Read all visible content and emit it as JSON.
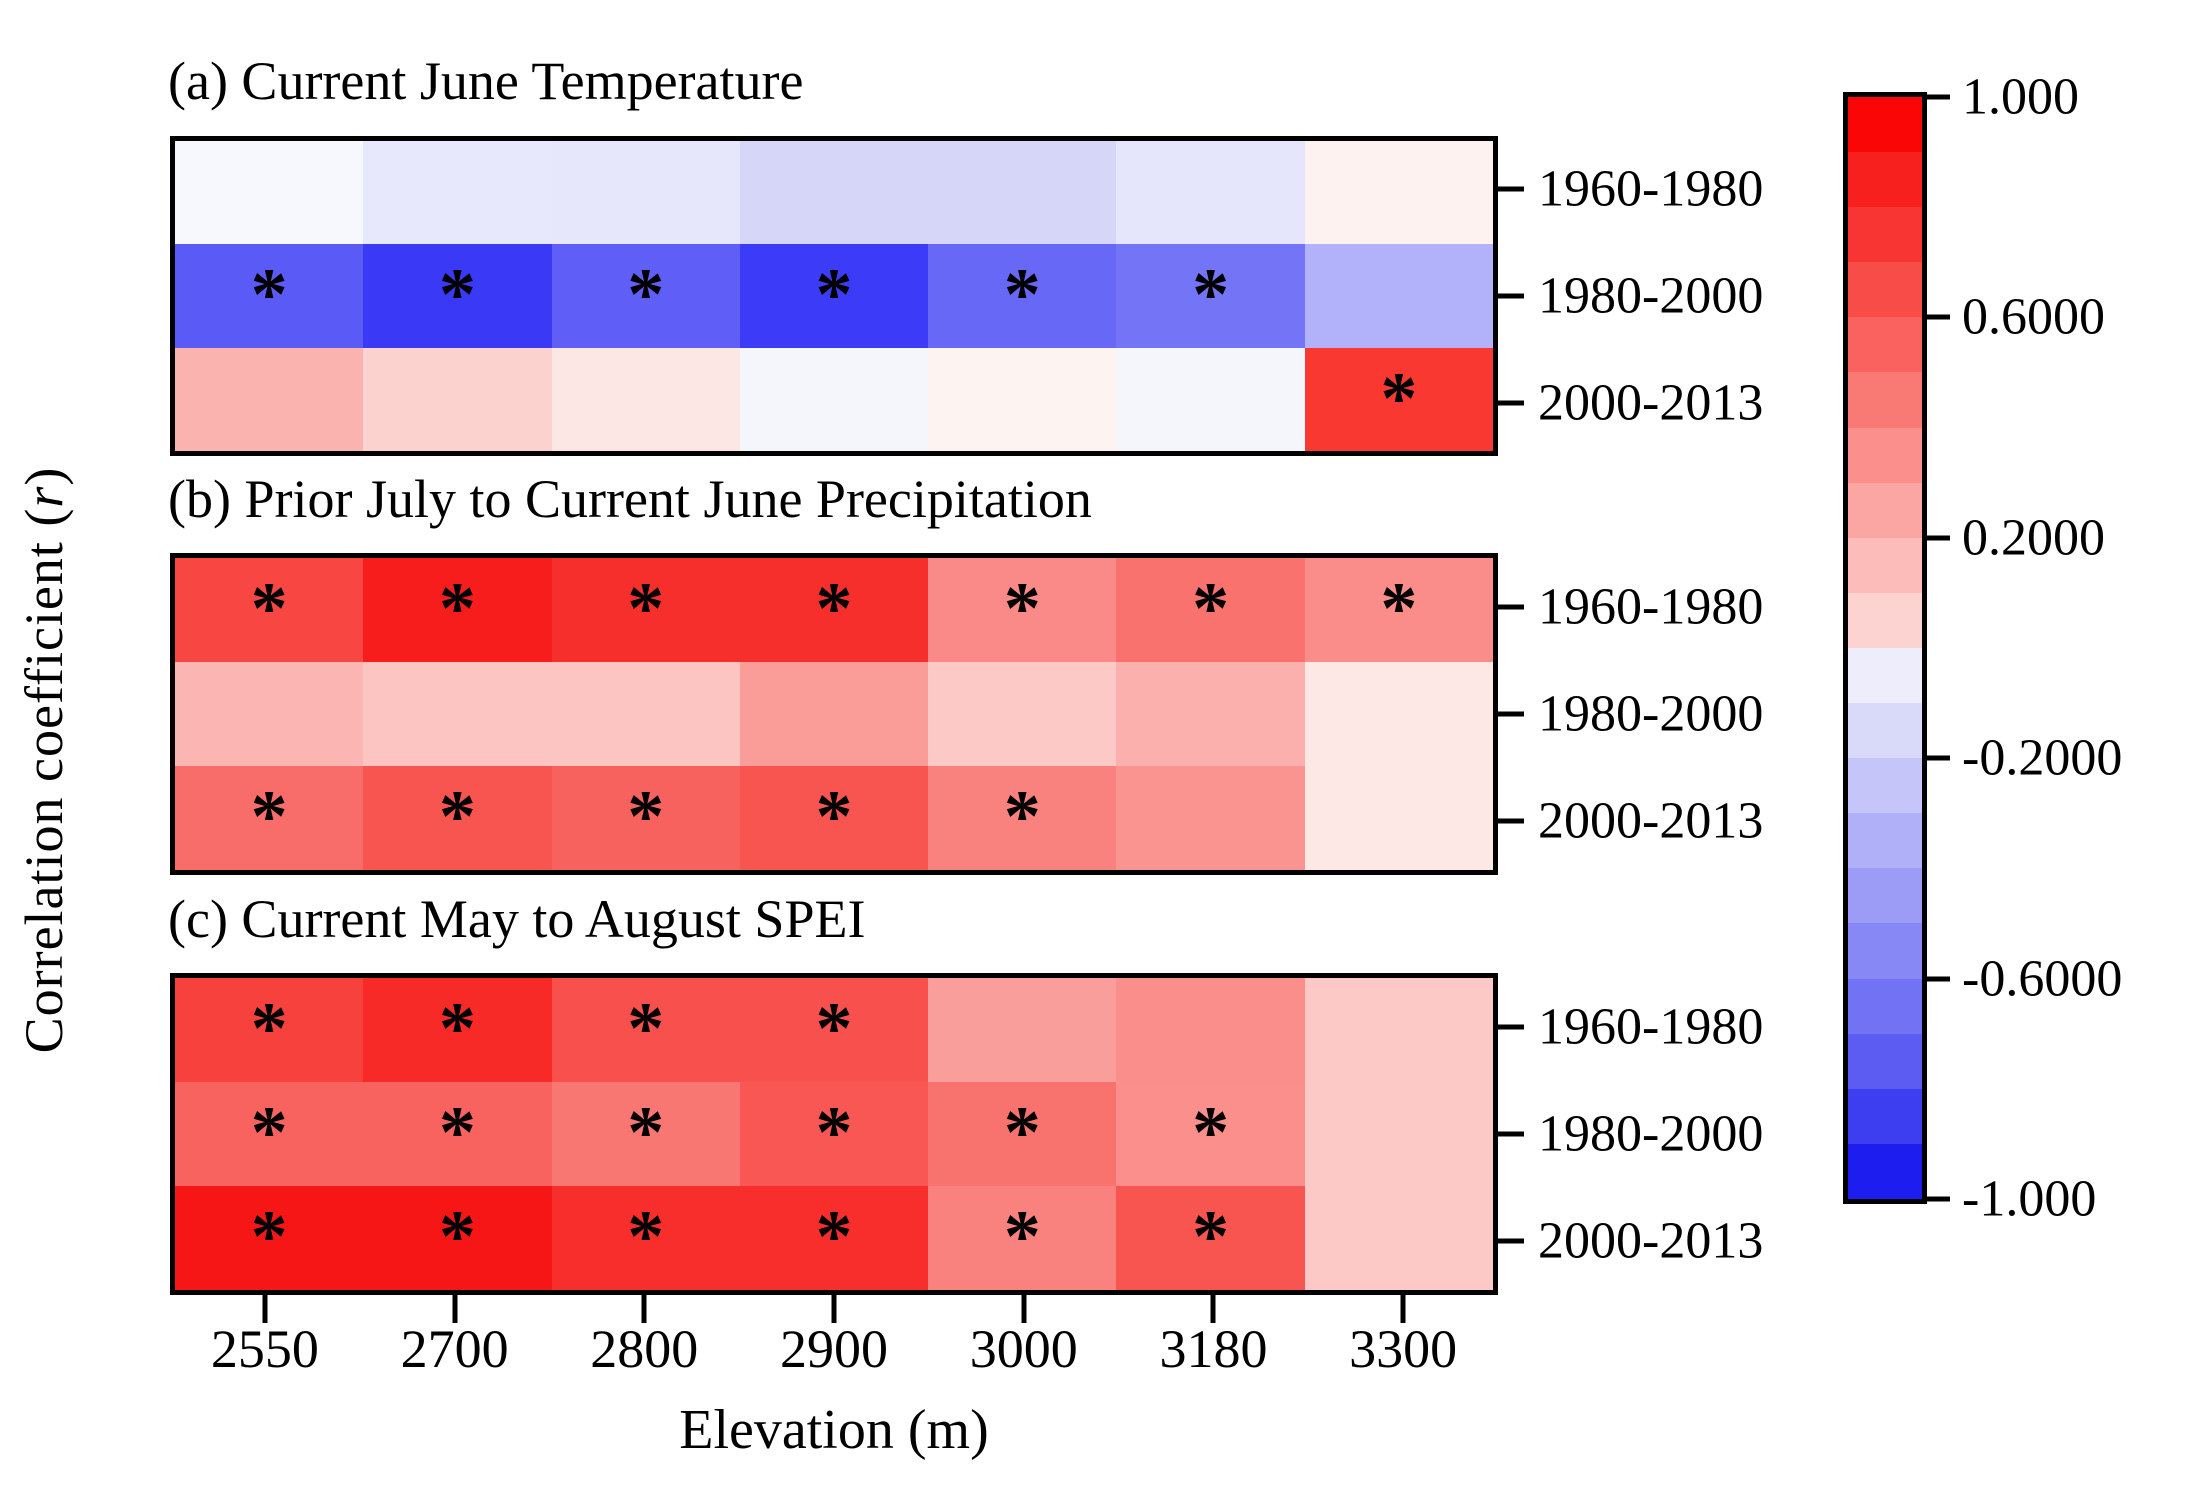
{
  "figure": {
    "ylabel_prefix": "Correlation coefficient (",
    "ylabel_italic": "r",
    "ylabel_suffix": ")",
    "xlabel": "Elevation (m)",
    "elevations": [
      "2550",
      "2700",
      "2800",
      "2900",
      "3000",
      "3180",
      "3300"
    ],
    "periods": [
      "1960-1980",
      "1980-2000",
      "2000-2013"
    ],
    "frame_color": "#000000"
  },
  "colorbar": {
    "tick_labels": [
      "1.000",
      "0.6000",
      "0.2000",
      "-0.2000",
      "-0.6000",
      "-1.000"
    ],
    "range": [
      -1.0,
      1.0
    ],
    "band_colors": [
      "#fb0606",
      "#f81f1f",
      "#f83532",
      "#f84c48",
      "#f9625f",
      "#f97975",
      "#fa8f8c",
      "#fba6a3",
      "#fcbcb9",
      "#fdd3d1",
      "#ededfc",
      "#d9d9fa",
      "#c5c5f9",
      "#b0b0f8",
      "#9c9cf6",
      "#8787f5",
      "#7272f4",
      "#5c5cf3",
      "#3e3ef1",
      "#1d1df0"
    ]
  },
  "chart_data": [
    {
      "type": "heatmap",
      "id": "a",
      "title": "(a) Current June Temperature",
      "x": [
        "2550",
        "2700",
        "2800",
        "2900",
        "3000",
        "3180",
        "3300"
      ],
      "y": [
        "1960-1980",
        "1980-2000",
        "2000-2013"
      ],
      "values_estimated": [
        [
          -0.03,
          -0.09,
          -0.09,
          -0.15,
          -0.15,
          -0.1,
          0.05
        ],
        [
          -0.62,
          -0.75,
          -0.6,
          -0.74,
          -0.56,
          -0.52,
          -0.29
        ],
        [
          0.28,
          0.17,
          0.09,
          -0.04,
          0.04,
          -0.04,
          0.76
        ]
      ],
      "significant": [
        [
          0,
          0,
          0,
          0,
          0,
          0,
          0
        ],
        [
          1,
          1,
          1,
          1,
          1,
          1,
          0
        ],
        [
          0,
          0,
          0,
          0,
          0,
          0,
          1
        ]
      ],
      "colors": [
        [
          "#f7f7fe",
          "#e8e8fc",
          "#e7e7fb",
          "#d6d6f8",
          "#d6d6f8",
          "#e5e5fb",
          "#fdf2f0"
        ],
        [
          "#5a5af6",
          "#3a3af6",
          "#5f5ff7",
          "#3c3cf8",
          "#6868f7",
          "#7474f7",
          "#b2b2fa"
        ],
        [
          "#fbb3b0",
          "#fcd2cf",
          "#fde7e4",
          "#f5f5fc",
          "#fdf4f1",
          "#f5f5fc",
          "#f93832"
        ]
      ]
    },
    {
      "type": "heatmap",
      "id": "b",
      "title": "(b) Prior July to Current June Precipitation",
      "x": [
        "2550",
        "2700",
        "2800",
        "2900",
        "3000",
        "3180",
        "3300"
      ],
      "y": [
        "1960-1980",
        "1980-2000",
        "2000-2013"
      ],
      "values_estimated": [
        [
          0.7,
          0.85,
          0.79,
          0.79,
          0.44,
          0.53,
          0.43
        ],
        [
          0.28,
          0.22,
          0.22,
          0.37,
          0.2,
          0.3,
          0.09
        ],
        [
          0.55,
          0.65,
          0.59,
          0.65,
          0.48,
          0.41,
          0.09
        ]
      ],
      "significant": [
        [
          1,
          1,
          1,
          1,
          1,
          1,
          1
        ],
        [
          0,
          0,
          0,
          0,
          0,
          0,
          0
        ],
        [
          1,
          1,
          1,
          1,
          1,
          0,
          0
        ]
      ],
      "colors": [
        [
          "#f84743",
          "#f71d1d",
          "#f72f2c",
          "#f72f2c",
          "#f98a87",
          "#f9726e",
          "#fa8d8a"
        ],
        [
          "#fbb5b2",
          "#fcc5c2",
          "#fcc5c2",
          "#fa9d99",
          "#fcc9c6",
          "#fbb0ad",
          "#fde8e6"
        ],
        [
          "#f86d69",
          "#f85551",
          "#f8625e",
          "#f85551",
          "#f9827e",
          "#fa9490",
          "#fde8e6"
        ]
      ]
    },
    {
      "type": "heatmap",
      "id": "c",
      "title": "(c) Current May to August SPEI",
      "x": [
        "2550",
        "2700",
        "2800",
        "2900",
        "3000",
        "3180",
        "3300"
      ],
      "y": [
        "1960-1980",
        "1980-2000",
        "2000-2013"
      ],
      "values_estimated": [
        [
          0.72,
          0.81,
          0.66,
          0.66,
          0.36,
          0.43,
          0.21
        ],
        [
          0.6,
          0.6,
          0.52,
          0.63,
          0.55,
          0.43,
          0.21
        ],
        [
          0.88,
          0.88,
          0.8,
          0.8,
          0.47,
          0.65,
          0.21
        ]
      ],
      "significant": [
        [
          1,
          1,
          1,
          1,
          0,
          0,
          0
        ],
        [
          1,
          1,
          1,
          1,
          1,
          1,
          0
        ],
        [
          1,
          1,
          1,
          1,
          1,
          1,
          0
        ]
      ],
      "colors": [
        [
          "#f7413d",
          "#f72a28",
          "#f8504c",
          "#f8504c",
          "#fa9e9b",
          "#fa8e8a",
          "#fcc9c6"
        ],
        [
          "#f86360",
          "#f86360",
          "#f97773",
          "#f85753",
          "#f8726e",
          "#fa8f8b",
          "#fcc9c6"
        ],
        [
          "#f71616",
          "#f71616",
          "#f72e2b",
          "#f72e2b",
          "#f9827f",
          "#f85551",
          "#fcc9c6"
        ]
      ]
    }
  ]
}
